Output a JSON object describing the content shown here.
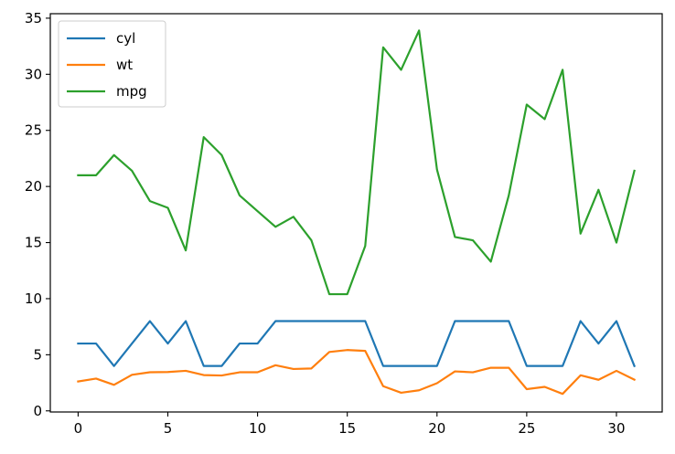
{
  "chart_data": {
    "type": "line",
    "title": "",
    "xlabel": "",
    "ylabel": "",
    "x": [
      0,
      1,
      2,
      3,
      4,
      5,
      6,
      7,
      8,
      9,
      10,
      11,
      12,
      13,
      14,
      15,
      16,
      17,
      18,
      19,
      20,
      21,
      22,
      23,
      24,
      25,
      26,
      27,
      28,
      29,
      30,
      31
    ],
    "xlim": [
      -1.55,
      32.55
    ],
    "ylim": [
      -0.1,
      35.4
    ],
    "xticks": [
      0,
      5,
      10,
      15,
      20,
      25,
      30
    ],
    "yticks": [
      0,
      5,
      10,
      15,
      20,
      25,
      30,
      35
    ],
    "grid": false,
    "legend_position": "upper-left",
    "series": [
      {
        "name": "cyl",
        "color": "#1f77b4",
        "values": [
          6,
          6,
          4,
          6,
          8,
          6,
          8,
          4,
          4,
          6,
          6,
          8,
          8,
          8,
          8,
          8,
          8,
          4,
          4,
          4,
          4,
          8,
          8,
          8,
          8,
          4,
          4,
          4,
          8,
          6,
          8,
          4
        ]
      },
      {
        "name": "wt",
        "color": "#ff7f0e",
        "values": [
          2.62,
          2.875,
          2.32,
          3.215,
          3.44,
          3.46,
          3.57,
          3.19,
          3.15,
          3.44,
          3.44,
          4.07,
          3.73,
          3.78,
          5.25,
          5.424,
          5.345,
          2.2,
          1.615,
          1.835,
          2.465,
          3.52,
          3.435,
          3.84,
          3.845,
          1.935,
          2.14,
          1.513,
          3.17,
          2.77,
          3.57,
          2.78
        ]
      },
      {
        "name": "mpg",
        "color": "#2ca02c",
        "values": [
          21,
          21,
          22.8,
          21.4,
          18.7,
          18.1,
          14.3,
          24.4,
          22.8,
          19.2,
          17.8,
          16.4,
          17.3,
          15.2,
          10.4,
          10.4,
          14.7,
          32.4,
          30.4,
          33.9,
          21.5,
          15.5,
          15.2,
          13.3,
          19.2,
          27.3,
          26,
          30.4,
          15.8,
          19.7,
          15,
          21.4
        ]
      }
    ]
  }
}
